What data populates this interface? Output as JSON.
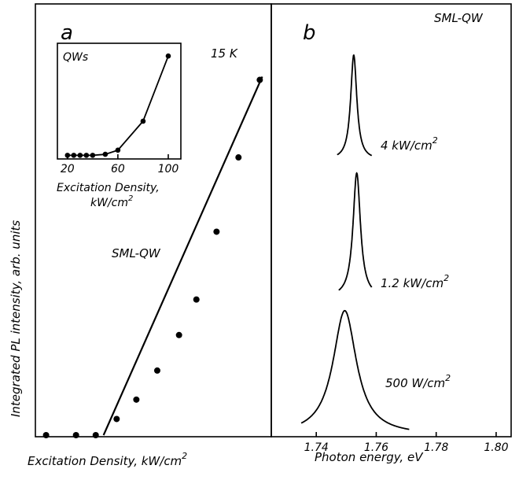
{
  "chart_data": [
    {
      "type": "scatter",
      "panel_label": "a",
      "temperature": "15 K",
      "series": [
        {
          "name": "SML-QW",
          "points": [
            {
              "x": 3,
              "y": 0.0
            },
            {
              "x": 5,
              "y": 0.0
            },
            {
              "x": 7,
              "y": 0.0
            },
            {
              "x": 10,
              "y": 0.05
            },
            {
              "x": 14,
              "y": 0.11
            },
            {
              "x": 20,
              "y": 0.2
            },
            {
              "x": 29,
              "y": 0.31
            },
            {
              "x": 39,
              "y": 0.42
            },
            {
              "x": 55,
              "y": 0.63
            },
            {
              "x": 80,
              "y": 0.86
            },
            {
              "x": 115,
              "y": 1.1
            }
          ],
          "fit": [
            [
              8,
              0.0
            ],
            [
              120,
              1.11
            ]
          ]
        }
      ],
      "xlabel": "Excitation Density, kW/cm2",
      "ylabel": "Integrated PL intensity, arb. units",
      "xscale": "log",
      "xlim": [
        2.5,
        140
      ],
      "ylim": [
        0,
        1.25
      ],
      "grid": false
    },
    {
      "type": "scatter",
      "inset": true,
      "series": [
        {
          "name": "QWs",
          "points": [
            {
              "x": 20,
              "y": 0.02
            },
            {
              "x": 25,
              "y": 0.02
            },
            {
              "x": 30,
              "y": 0.02
            },
            {
              "x": 35,
              "y": 0.02
            },
            {
              "x": 40,
              "y": 0.02
            },
            {
              "x": 50,
              "y": 0.03
            },
            {
              "x": 60,
              "y": 0.07
            },
            {
              "x": 80,
              "y": 0.35
            },
            {
              "x": 100,
              "y": 0.98
            }
          ]
        }
      ],
      "xticks": [
        "20",
        "60",
        "100"
      ],
      "xlim": [
        12,
        110
      ],
      "ylim": [
        0,
        1.05
      ],
      "xlabel": "Excitation Density, kW/cm2"
    },
    {
      "type": "line",
      "panel_label": "b",
      "series_name": "SML-QW",
      "series": [
        {
          "name": "4 kW/cm2",
          "peak_eV": 1.7525,
          "fwhm_eV": 0.0025,
          "offset": 2.1,
          "height": 0.8,
          "range": [
            1.747,
            1.7585
          ]
        },
        {
          "name": "1.2 kW/cm2",
          "peak_eV": 1.7535,
          "fwhm_eV": 0.003,
          "offset": 1.05,
          "height": 0.95,
          "range": [
            1.7475,
            1.7585
          ]
        },
        {
          "name": "500 W/cm2",
          "peak_eV": 1.7495,
          "fwhm_eV": 0.0095,
          "offset": 0.0,
          "height": 0.95,
          "range": [
            1.735,
            1.771
          ]
        }
      ],
      "xlabel": "Photon energy, eV",
      "xticks": [
        "1.74",
        "1.76",
        "1.78",
        "1.80"
      ],
      "xlim": [
        1.725,
        1.805
      ],
      "ylim": [
        0,
        3.2
      ],
      "grid": false
    }
  ]
}
